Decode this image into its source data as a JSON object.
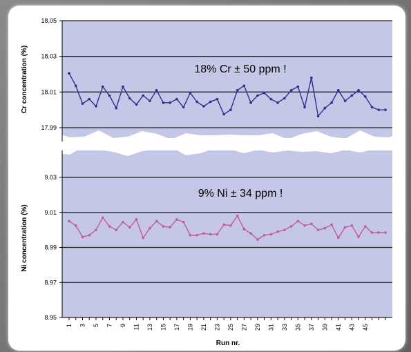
{
  "chart_data": [
    {
      "type": "line",
      "title": "",
      "xlabel": "",
      "ylabel": "Cr concentration (%)",
      "ylim": [
        17.99,
        18.05
      ],
      "yticks": [
        "17.99",
        "18.01",
        "18.03",
        "18.05"
      ],
      "annotation": "18% Cr ± 50 ppm !",
      "grid": true,
      "colors": {
        "line": "#2a2f8f",
        "plot_bg": "#c5c7e6",
        "grid": "#222222"
      },
      "x": [
        1,
        2,
        3,
        4,
        5,
        6,
        7,
        8,
        9,
        10,
        11,
        12,
        13,
        14,
        15,
        16,
        17,
        18,
        19,
        20,
        21,
        22,
        23,
        24,
        25,
        26,
        27,
        28,
        29,
        30,
        31,
        32,
        33,
        34,
        35,
        36,
        37,
        38,
        39,
        40,
        41,
        42,
        43,
        44,
        45,
        46,
        47,
        48
      ],
      "values": [
        18.0205,
        18.0135,
        18.0035,
        18.006,
        18.002,
        18.013,
        18.008,
        18.001,
        18.013,
        18.0065,
        18.003,
        18.008,
        18.005,
        18.011,
        18.004,
        18.004,
        18.006,
        18.0015,
        18.0095,
        18.0045,
        18.002,
        18.0045,
        18.006,
        17.9975,
        18.0,
        18.011,
        18.0135,
        18.004,
        18.008,
        18.0095,
        18.006,
        18.004,
        18.0065,
        18.011,
        18.013,
        18.0015,
        18.018,
        17.9965,
        18.001,
        18.004,
        18.011,
        18.005,
        18.008,
        18.011,
        18.0075,
        18.0015,
        18.0,
        18.0
      ]
    },
    {
      "type": "line",
      "title": "",
      "xlabel": "Run nr.",
      "ylabel": "Ni concentration (%)",
      "ylim": [
        8.95,
        9.04
      ],
      "yticks": [
        "8.95",
        "8.97",
        "8.99",
        "9.01",
        "9.03"
      ],
      "annotation": "9% Ni ± 34 ppm !",
      "grid": true,
      "colors": {
        "line": "#c05aa6",
        "plot_bg": "#c5c7e6",
        "grid": "#222222"
      },
      "x": [
        1,
        2,
        3,
        4,
        5,
        6,
        7,
        8,
        9,
        10,
        11,
        12,
        13,
        14,
        15,
        16,
        17,
        18,
        19,
        20,
        21,
        22,
        23,
        24,
        25,
        26,
        27,
        28,
        29,
        30,
        31,
        32,
        33,
        34,
        35,
        36,
        37,
        38,
        39,
        40,
        41,
        42,
        43,
        44,
        45,
        46,
        47,
        48
      ],
      "xticklabels": [
        "1",
        "3",
        "5",
        "7",
        "9",
        "11",
        "13",
        "15",
        "17",
        "19",
        "21",
        "23",
        "25",
        "27",
        "29",
        "31",
        "33",
        "35",
        "37",
        "39",
        "41",
        "43",
        "45"
      ],
      "values": [
        9.005,
        9.0025,
        8.996,
        8.997,
        9.0,
        9.007,
        9.002,
        9.0,
        9.0045,
        9.0015,
        9.006,
        8.9955,
        9.001,
        9.005,
        9.002,
        9.0015,
        9.006,
        9.0045,
        8.997,
        8.997,
        8.998,
        8.9975,
        8.9975,
        9.003,
        9.0025,
        9.008,
        9.0005,
        8.998,
        8.9945,
        8.997,
        8.9975,
        8.999,
        9.0,
        9.002,
        9.005,
        9.0025,
        9.0035,
        9.0,
        9.001,
        9.003,
        8.9955,
        9.0015,
        9.0025,
        8.996,
        9.002,
        8.9985,
        8.9985,
        8.9985
      ]
    }
  ]
}
